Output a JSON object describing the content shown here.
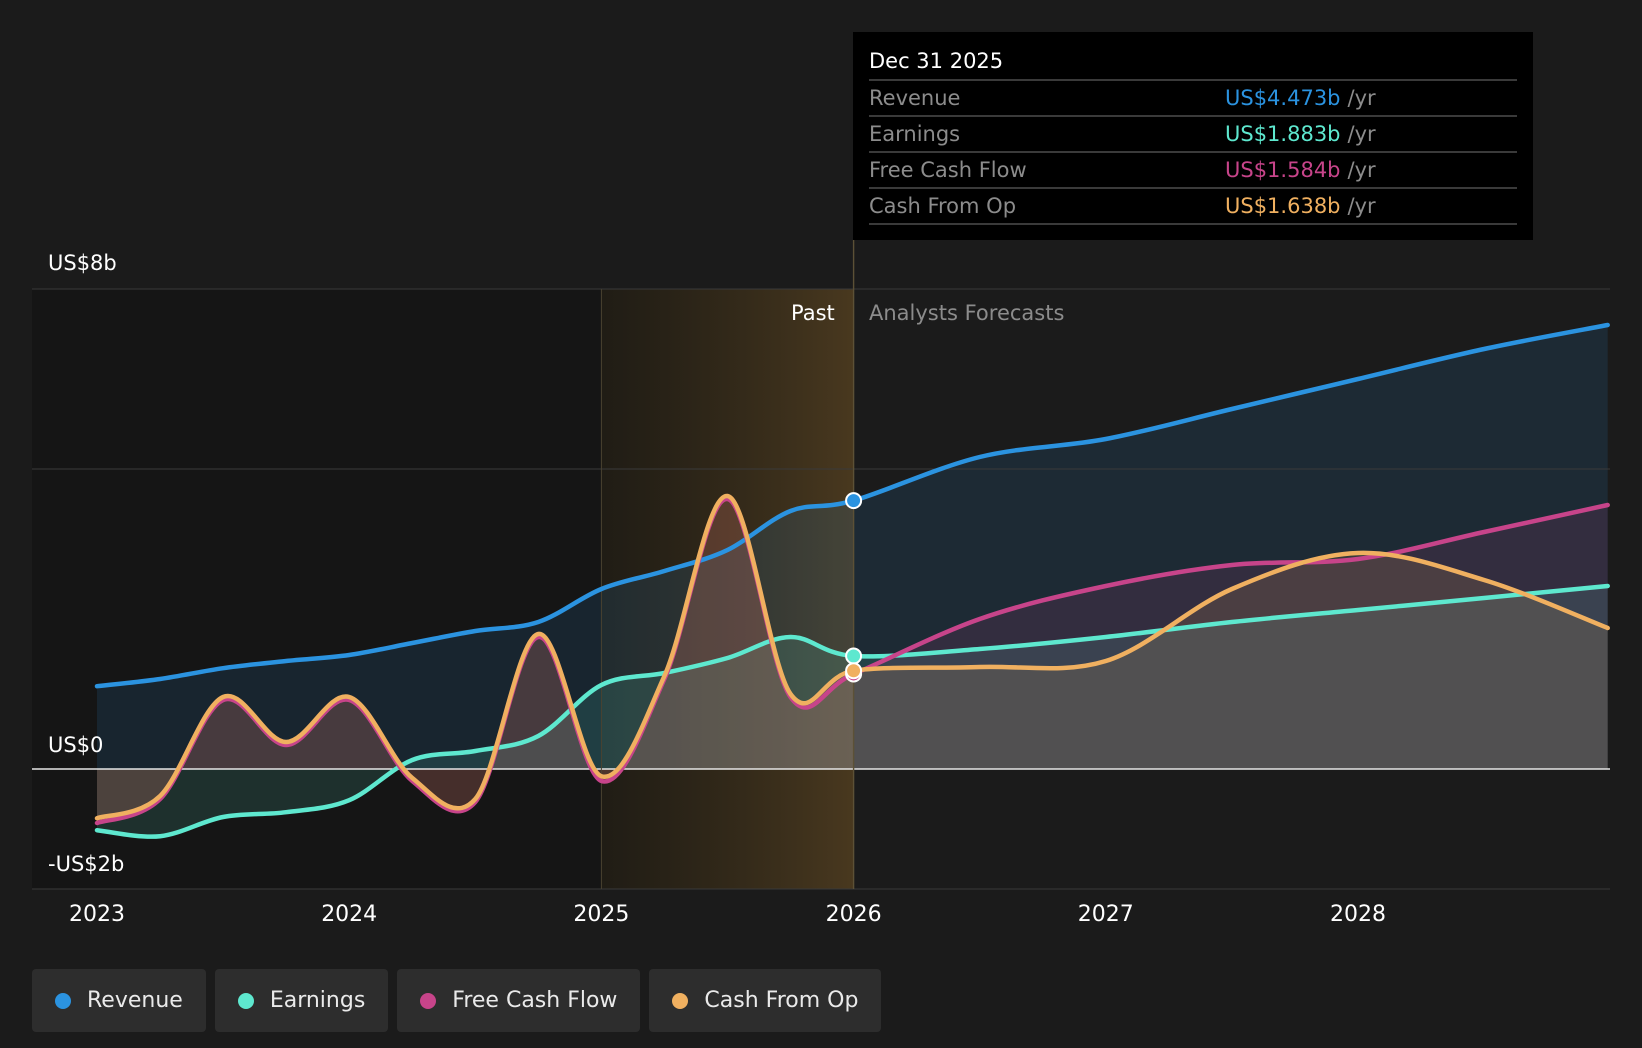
{
  "tooltip": {
    "date": "Dec 31 2025",
    "unit": "/yr",
    "rows": [
      {
        "label": "Revenue",
        "value": "US$4.473b",
        "color": "#2b93e0"
      },
      {
        "label": "Earnings",
        "value": "US$1.883b",
        "color": "#5ee8cf"
      },
      {
        "label": "Free Cash Flow",
        "value": "US$1.584b",
        "color": "#c7448a"
      },
      {
        "label": "Cash From Op",
        "value": "US$1.638b",
        "color": "#f0b060"
      }
    ]
  },
  "labels": {
    "past": "Past",
    "forecast": "Analysts Forecasts"
  },
  "legend": [
    {
      "label": "Revenue",
      "color": "#2b93e0"
    },
    {
      "label": "Earnings",
      "color": "#5ee8cf"
    },
    {
      "label": "Free Cash Flow",
      "color": "#c7448a"
    },
    {
      "label": "Cash From Op",
      "color": "#f0b060"
    }
  ],
  "chart_data": {
    "type": "line",
    "ylabel_ticks": [
      "US$8b",
      "US$0",
      "-US$2b"
    ],
    "x_ticks": [
      "2023",
      "2024",
      "2025",
      "2026",
      "2027",
      "2028"
    ],
    "ylim": [
      -2,
      8
    ],
    "xlim": [
      2022.75,
      2028.99
    ],
    "past_until": 2026.0,
    "highlight_from": 2025.0,
    "grid_values": [
      8,
      5,
      0,
      -2
    ],
    "series": [
      {
        "name": "Revenue",
        "color": "#2b93e0",
        "points": [
          [
            2023.0,
            1.38
          ],
          [
            2023.25,
            1.5
          ],
          [
            2023.5,
            1.68
          ],
          [
            2023.75,
            1.8
          ],
          [
            2024.0,
            1.9
          ],
          [
            2024.25,
            2.1
          ],
          [
            2024.5,
            2.3
          ],
          [
            2024.75,
            2.45
          ],
          [
            2025.0,
            3.0
          ],
          [
            2025.25,
            3.3
          ],
          [
            2025.5,
            3.65
          ],
          [
            2025.75,
            4.3
          ],
          [
            2026.0,
            4.473
          ],
          [
            2026.5,
            5.2
          ],
          [
            2027.0,
            5.5
          ],
          [
            2027.5,
            6.0
          ],
          [
            2028.0,
            6.5
          ],
          [
            2028.5,
            7.0
          ],
          [
            2028.99,
            7.4
          ]
        ]
      },
      {
        "name": "Earnings",
        "color": "#5ee8cf",
        "points": [
          [
            2023.0,
            -1.02
          ],
          [
            2023.25,
            -1.12
          ],
          [
            2023.5,
            -0.8
          ],
          [
            2023.75,
            -0.72
          ],
          [
            2024.0,
            -0.52
          ],
          [
            2024.25,
            0.15
          ],
          [
            2024.5,
            0.3
          ],
          [
            2024.75,
            0.55
          ],
          [
            2025.0,
            1.4
          ],
          [
            2025.25,
            1.6
          ],
          [
            2025.5,
            1.85
          ],
          [
            2025.75,
            2.2
          ],
          [
            2026.0,
            1.883
          ],
          [
            2026.5,
            2.0
          ],
          [
            2027.0,
            2.2
          ],
          [
            2027.5,
            2.45
          ],
          [
            2028.0,
            2.65
          ],
          [
            2028.5,
            2.85
          ],
          [
            2028.99,
            3.05
          ]
        ]
      },
      {
        "name": "Free Cash Flow",
        "color": "#c7448a",
        "points": [
          [
            2023.0,
            -0.9
          ],
          [
            2023.25,
            -0.5
          ],
          [
            2023.5,
            1.15
          ],
          [
            2023.75,
            0.4
          ],
          [
            2024.0,
            1.15
          ],
          [
            2024.25,
            -0.2
          ],
          [
            2024.5,
            -0.55
          ],
          [
            2024.75,
            2.2
          ],
          [
            2025.0,
            -0.2
          ],
          [
            2025.25,
            1.5
          ],
          [
            2025.5,
            4.5
          ],
          [
            2025.75,
            1.2
          ],
          [
            2026.0,
            1.584
          ],
          [
            2026.5,
            2.5
          ],
          [
            2027.0,
            3.05
          ],
          [
            2027.5,
            3.4
          ],
          [
            2028.0,
            3.5
          ],
          [
            2028.5,
            3.95
          ],
          [
            2028.99,
            4.4
          ]
        ]
      },
      {
        "name": "Cash From Op",
        "color": "#f0b060",
        "points": [
          [
            2023.0,
            -0.82
          ],
          [
            2023.25,
            -0.45
          ],
          [
            2023.5,
            1.2
          ],
          [
            2023.75,
            0.45
          ],
          [
            2024.0,
            1.2
          ],
          [
            2024.25,
            -0.15
          ],
          [
            2024.5,
            -0.5
          ],
          [
            2024.75,
            2.25
          ],
          [
            2025.0,
            -0.12
          ],
          [
            2025.25,
            1.55
          ],
          [
            2025.5,
            4.55
          ],
          [
            2025.75,
            1.25
          ],
          [
            2026.0,
            1.638
          ],
          [
            2026.5,
            1.7
          ],
          [
            2027.0,
            1.8
          ],
          [
            2027.5,
            3.0
          ],
          [
            2028.0,
            3.6
          ],
          [
            2028.5,
            3.15
          ],
          [
            2028.99,
            2.35
          ]
        ]
      }
    ]
  }
}
